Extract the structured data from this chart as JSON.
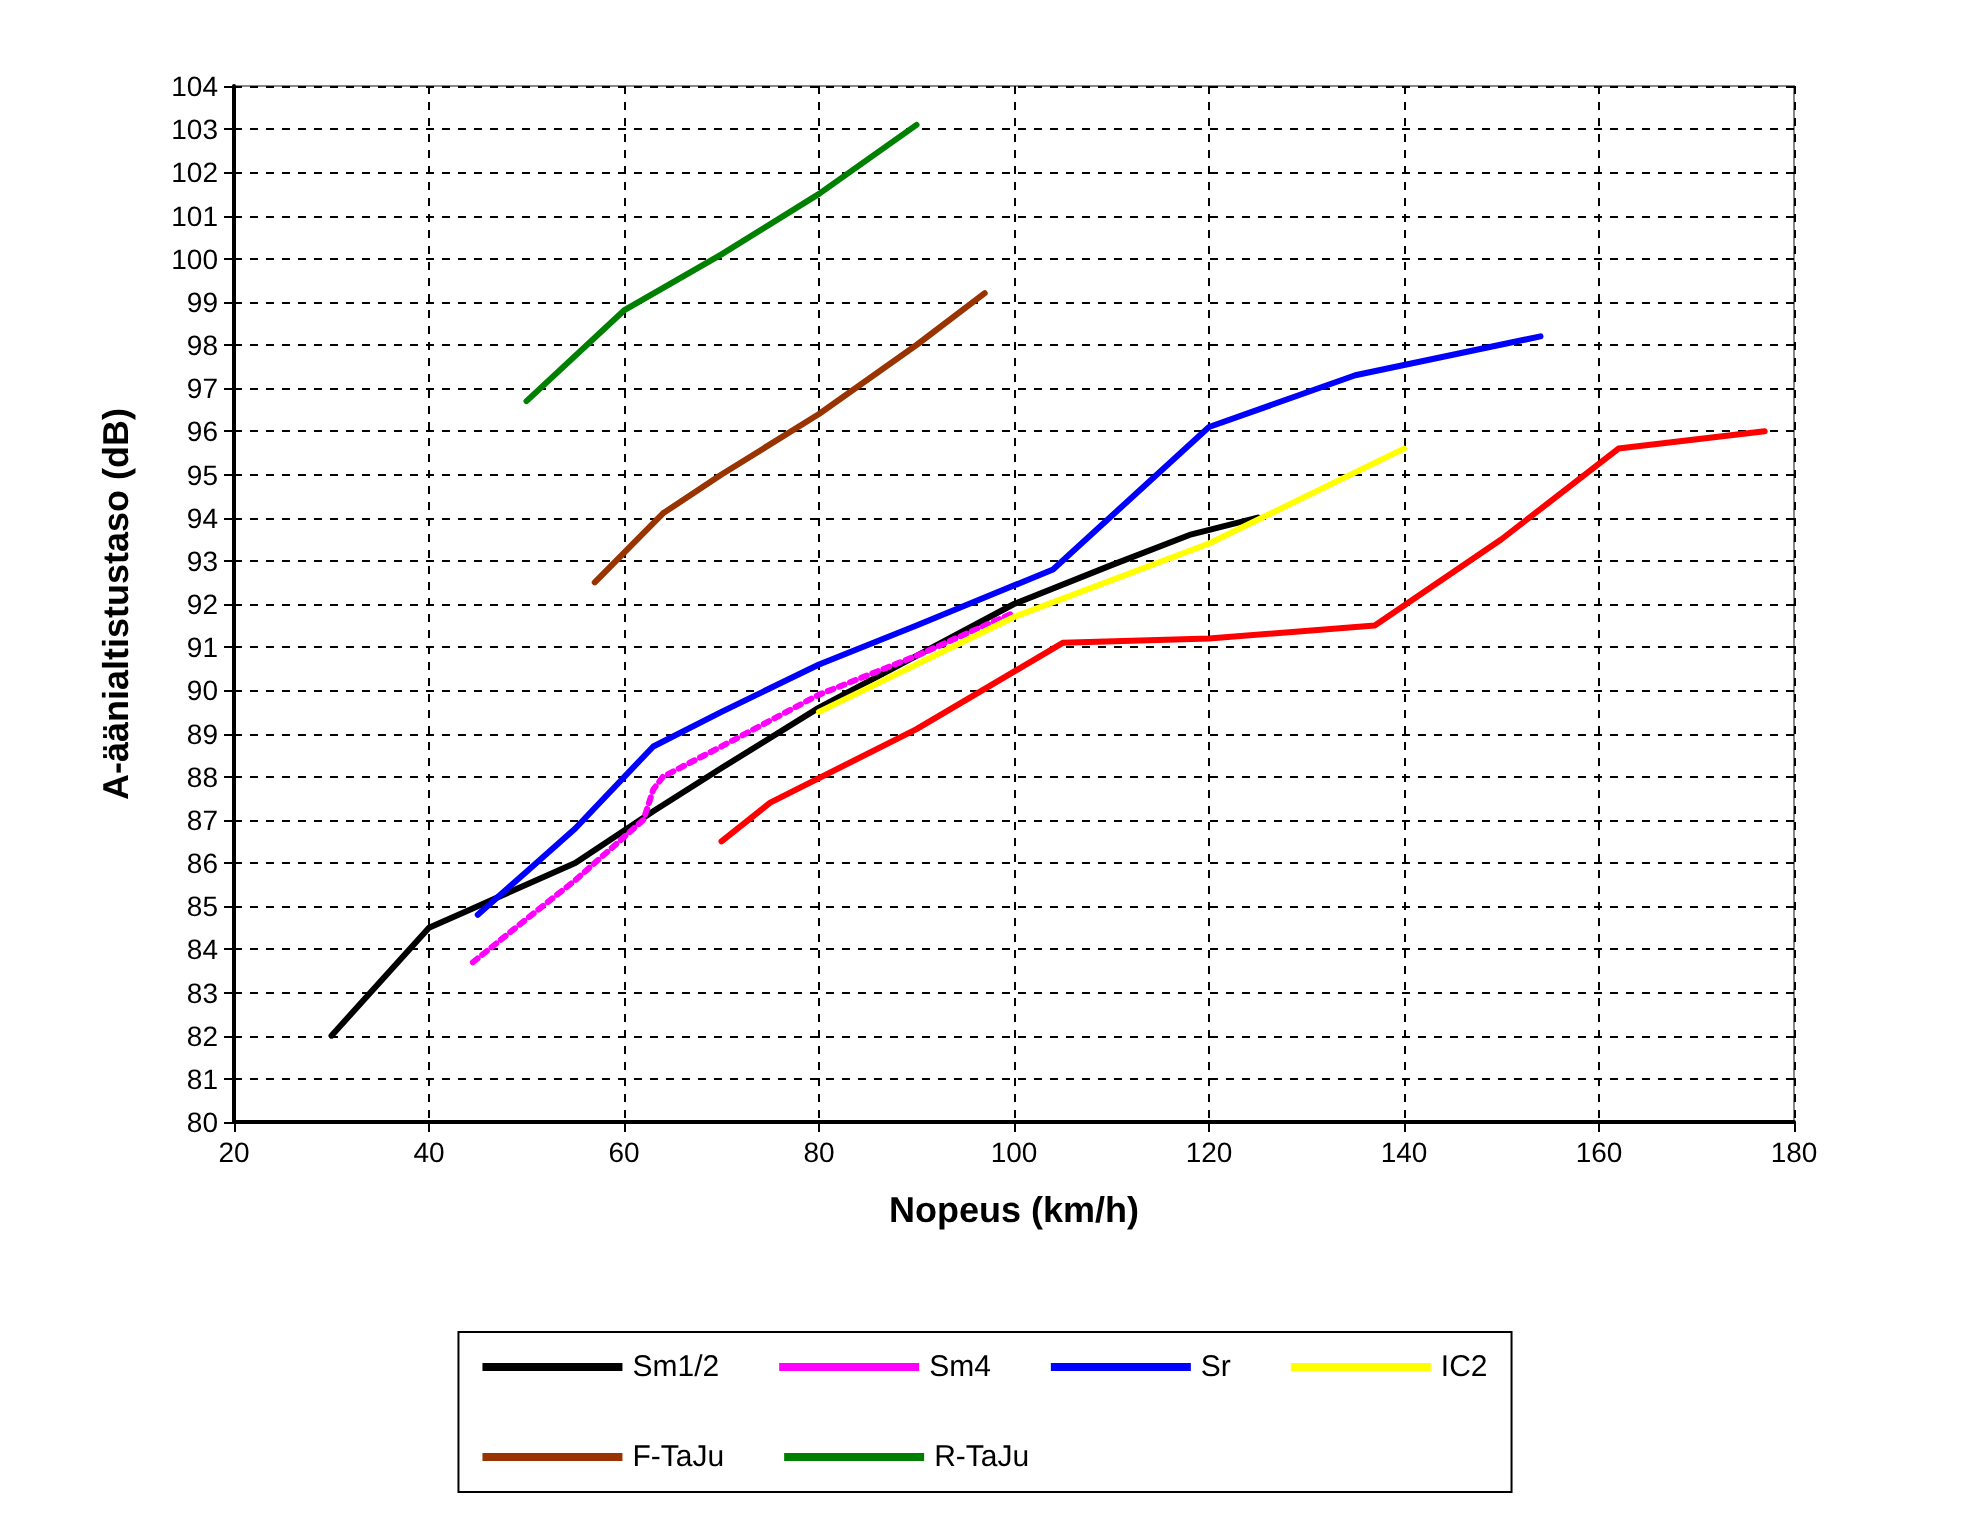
{
  "chart_data": {
    "type": "line",
    "xlabel": "Nopeus (km/h)",
    "ylabel": "A-äänialtistustaso (dB)",
    "xlim": [
      20,
      180
    ],
    "xticks": [
      20,
      40,
      60,
      80,
      100,
      120,
      140,
      160,
      180
    ],
    "ylim": [
      80,
      104
    ],
    "yticks": [
      80,
      81,
      82,
      83,
      84,
      85,
      86,
      87,
      88,
      89,
      90,
      91,
      92,
      93,
      94,
      95,
      96,
      97,
      98,
      99,
      100,
      101,
      102,
      103,
      104
    ],
    "grid": true,
    "legend": "bottom",
    "marker": "none",
    "series": [
      {
        "name": "Sm1/2",
        "color": "#000000",
        "x": [
          30,
          40,
          45,
          55,
          63,
          70,
          80,
          90,
          100,
          110,
          118,
          125
        ],
        "values": [
          82,
          84.5,
          85,
          86,
          87.2,
          88.2,
          89.6,
          90.8,
          92,
          92.9,
          93.6,
          94
        ]
      },
      {
        "name": "Sm4",
        "color": "#ff00ff",
        "line_style": "dotted",
        "x": [
          44.5,
          50,
          55,
          62,
          63,
          64,
          70,
          80,
          90,
          100
        ],
        "values": [
          83.7,
          84.7,
          85.6,
          87,
          87.7,
          88,
          88.7,
          89.9,
          90.8,
          91.8
        ]
      },
      {
        "name": "Sr",
        "color": "#0000ff",
        "x": [
          45,
          50,
          55,
          63,
          70,
          80,
          90,
          104,
          120,
          135,
          154
        ],
        "values": [
          84.8,
          85.8,
          86.8,
          88.7,
          89.5,
          90.6,
          91.5,
          92.8,
          96.1,
          97.3,
          98.2
        ]
      },
      {
        "name": "IC2",
        "color": "#ffff00",
        "x": [
          80,
          100,
          120,
          140
        ],
        "values": [
          89.5,
          91.7,
          93.4,
          95.6
        ]
      },
      {
        "color": "#ff0000",
        "x": [
          70,
          75,
          90,
          105,
          120,
          137,
          150,
          162,
          177
        ],
        "values": [
          86.5,
          87.4,
          89.1,
          91.1,
          91.2,
          91.5,
          93.5,
          95.6,
          96
        ]
      },
      {
        "name": "F-TaJu",
        "color": "#993300",
        "x": [
          57,
          64,
          70,
          80,
          90,
          97
        ],
        "values": [
          92.5,
          94.1,
          95,
          96.4,
          98,
          99.2
        ]
      },
      {
        "name": "R-TaJu",
        "color": "#008000",
        "x": [
          50,
          60,
          70,
          80,
          90
        ],
        "values": [
          96.7,
          98.8,
          100.1,
          101.5,
          103.1
        ]
      }
    ]
  }
}
